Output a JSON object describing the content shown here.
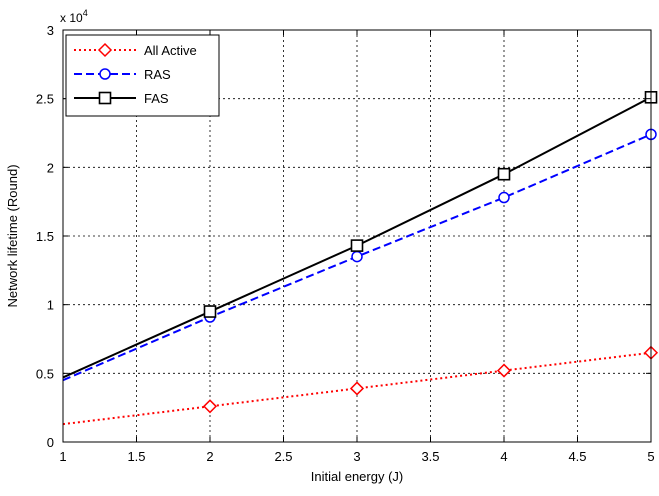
{
  "chart_data": {
    "type": "line",
    "xlabel": "Initial energy (J)",
    "ylabel": "Network lifetime (Round)",
    "y_multiplier_base": "x 10",
    "y_multiplier_exp": "4",
    "xlim": [
      1,
      5
    ],
    "ylim": [
      0,
      3
    ],
    "x_ticks": [
      1,
      1.5,
      2,
      2.5,
      3,
      3.5,
      4,
      4.5,
      5
    ],
    "x_tick_labels": [
      "1",
      "1.5",
      "2",
      "2.5",
      "3",
      "3.5",
      "4",
      "4.5",
      "5"
    ],
    "y_ticks": [
      0,
      0.5,
      1,
      1.5,
      2,
      2.5,
      3
    ],
    "y_tick_labels": [
      "0",
      "0.5",
      "1",
      "1.5",
      "2",
      "2.5",
      "3"
    ],
    "grid": true,
    "legend_position": "top-left",
    "series": [
      {
        "name": "All Active",
        "color": "#ff0000",
        "line_style": "dotted",
        "marker": "diamond",
        "x": [
          1,
          5
        ],
        "y": [
          0.13,
          0.65
        ],
        "marker_x": [
          2,
          3,
          4,
          5
        ],
        "marker_y": [
          0.26,
          0.39,
          0.52,
          0.65
        ]
      },
      {
        "name": "RAS",
        "color": "#0000ff",
        "line_style": "dashed",
        "marker": "circle",
        "x": [
          1,
          2,
          3,
          4,
          5
        ],
        "y": [
          0.45,
          0.91,
          1.35,
          1.78,
          2.24
        ],
        "marker_x": [
          2,
          3,
          4,
          5
        ],
        "marker_y": [
          0.91,
          1.35,
          1.78,
          2.24
        ]
      },
      {
        "name": "FAS",
        "color": "#000000",
        "line_style": "solid",
        "marker": "square",
        "x": [
          1,
          2,
          3,
          4,
          5
        ],
        "y": [
          0.47,
          0.95,
          1.43,
          1.95,
          2.51
        ],
        "marker_x": [
          2,
          3,
          4,
          5
        ],
        "marker_y": [
          0.95,
          1.43,
          1.95,
          2.51
        ]
      }
    ]
  }
}
